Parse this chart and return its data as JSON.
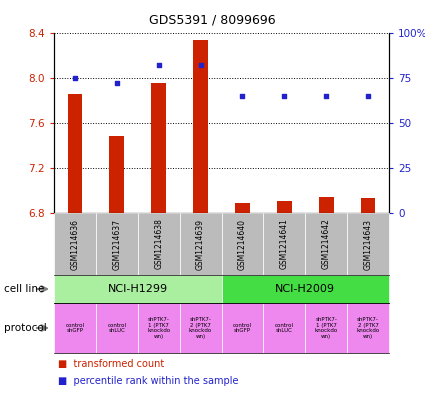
{
  "title": "GDS5391 / 8099696",
  "samples": [
    "GSM1214636",
    "GSM1214637",
    "GSM1214638",
    "GSM1214639",
    "GSM1214640",
    "GSM1214641",
    "GSM1214642",
    "GSM1214643"
  ],
  "transformed_count": [
    7.86,
    7.48,
    7.96,
    8.34,
    6.89,
    6.91,
    6.94,
    6.93
  ],
  "percentile_rank": [
    75,
    72,
    82,
    82,
    65,
    65,
    65,
    65
  ],
  "ylim_left": [
    6.8,
    8.4
  ],
  "ylim_right": [
    0,
    100
  ],
  "yticks_left": [
    6.8,
    7.2,
    7.6,
    8.0,
    8.4
  ],
  "yticks_right": [
    0,
    25,
    50,
    75,
    100
  ],
  "bar_color": "#CC2200",
  "dot_color": "#2222CC",
  "bar_bottom": 6.8,
  "cell_line_groups": [
    {
      "label": "NCI-H1299",
      "start": 0,
      "end": 4,
      "color": "#AAEEA0"
    },
    {
      "label": "NCI-H2009",
      "start": 4,
      "end": 8,
      "color": "#44DD44"
    }
  ],
  "protocols": [
    "control\nshGFP",
    "control\nshLUC",
    "shPTK7-\n1 (PTK7\nknockdo\nwn)",
    "shPTK7-\n2 (PTK7\nknockdo\nwn)",
    "control\nshGFP",
    "control\nshLUC",
    "shPTK7-\n1 (PTK7\nknockdo\nwn)",
    "shPTK7-\n2 (PTK7\nknockdo\nwn)"
  ],
  "protocol_color": "#EE88EE",
  "sample_bg_color": "#BBBBBB",
  "bar_width": 0.35
}
